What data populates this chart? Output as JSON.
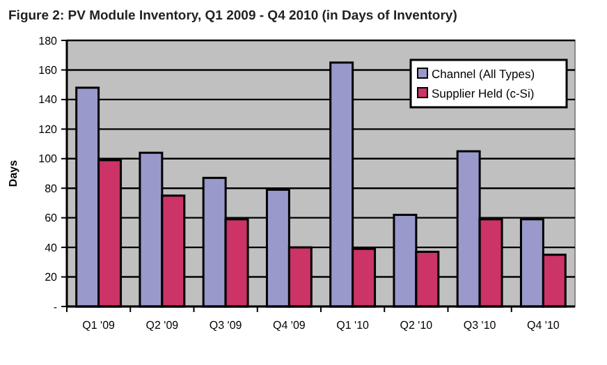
{
  "chart_data": {
    "type": "bar",
    "title": "Figure 2: PV Module Inventory, Q1 2009 - Q4 2010 (in Days of Inventory)",
    "ylabel": "Days",
    "categories": [
      "Q1 '09",
      "Q2 '09",
      "Q3 '09",
      "Q4 '09",
      "Q1 '10",
      "Q2 '10",
      "Q3 '10",
      "Q4 '10"
    ],
    "series": [
      {
        "name": "Channel (All Types)",
        "color": "#9999cc",
        "values": [
          148,
          104,
          87,
          79,
          165,
          62,
          105,
          59
        ]
      },
      {
        "name": "Supplier Held (c-Si)",
        "color": "#cc3366",
        "values": [
          99,
          75,
          59,
          40,
          39,
          37,
          59,
          35
        ]
      }
    ],
    "ylim": [
      0,
      180
    ],
    "yticks": [
      {
        "value": 0,
        "label": "-"
      },
      20,
      40,
      60,
      80,
      100,
      120,
      140,
      160,
      180
    ],
    "grid": "y",
    "legend": "top right"
  }
}
